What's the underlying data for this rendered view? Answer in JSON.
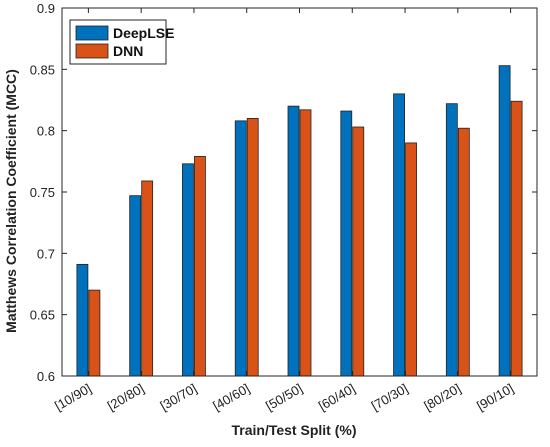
{
  "chart_data": {
    "type": "bar",
    "title": "",
    "xlabel": "Train/Test Split (%)",
    "ylabel": "Matthews Correlation Coefficient (MCC)",
    "categories": [
      "[10/90]",
      "[20/80]",
      "[30/70]",
      "[40/60]",
      "[50/50]",
      "[60/40]",
      "[70/30]",
      "[80/20]",
      "[90/10]"
    ],
    "series": [
      {
        "name": "DeepLSE",
        "color": "#0072BD",
        "values": [
          0.691,
          0.747,
          0.773,
          0.808,
          0.82,
          0.816,
          0.83,
          0.822,
          0.853
        ]
      },
      {
        "name": "DNN",
        "color": "#D95319",
        "values": [
          0.67,
          0.759,
          0.779,
          0.81,
          0.817,
          0.803,
          0.79,
          0.802,
          0.824
        ]
      }
    ],
    "ylim": [
      0.6,
      0.9
    ],
    "yticks": [
      0.6,
      0.65,
      0.7,
      0.75,
      0.8,
      0.85,
      0.9
    ],
    "ytick_labels": [
      "0.6",
      "0.65",
      "0.7",
      "0.75",
      "0.8",
      "0.85",
      "0.9"
    ],
    "grid": false,
    "legend_position": "top-left"
  }
}
